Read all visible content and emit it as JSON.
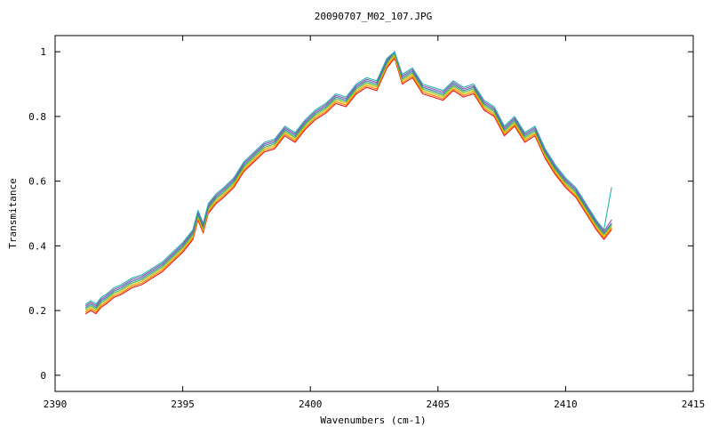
{
  "chart_data": {
    "type": "line",
    "title": "20090707_M02_107.JPG",
    "xlabel": "Wavenumbers (cm-1)",
    "ylabel": "Transmitance",
    "xlim": [
      2390,
      2415
    ],
    "ylim": [
      -0.05,
      1.05
    ],
    "xticks": [
      2390,
      2395,
      2400,
      2405,
      2410,
      2415
    ],
    "yticks": [
      0,
      0.2,
      0.4,
      0.6,
      0.8,
      1
    ],
    "xtick_labels": [
      "2390",
      "2395",
      "2400",
      "2405",
      "2410",
      "2415"
    ],
    "ytick_labels": [
      "0",
      "0.2",
      "0.4",
      "0.6",
      "0.8",
      "1"
    ],
    "grid": false,
    "legend": "none",
    "x": [
      2391.2,
      2391.4,
      2391.6,
      2391.8,
      2392.0,
      2392.3,
      2392.6,
      2393.0,
      2393.4,
      2393.8,
      2394.2,
      2394.6,
      2395.0,
      2395.4,
      2395.6,
      2395.8,
      2396.0,
      2396.3,
      2396.6,
      2397.0,
      2397.4,
      2397.8,
      2398.2,
      2398.6,
      2399.0,
      2399.4,
      2399.8,
      2400.2,
      2400.6,
      2401.0,
      2401.4,
      2401.8,
      2402.2,
      2402.6,
      2403.0,
      2403.3,
      2403.6,
      2404.0,
      2404.4,
      2404.8,
      2405.2,
      2405.6,
      2406.0,
      2406.4,
      2406.8,
      2407.2,
      2407.6,
      2408.0,
      2408.4,
      2408.8,
      2409.2,
      2409.6,
      2410.0,
      2410.4,
      2410.8,
      2411.2,
      2411.5,
      2411.8
    ],
    "series": [
      {
        "color": "#e41a1c",
        "values": [
          0.19,
          0.2,
          0.19,
          0.21,
          0.22,
          0.24,
          0.25,
          0.27,
          0.28,
          0.3,
          0.32,
          0.35,
          0.38,
          0.42,
          0.48,
          0.44,
          0.5,
          0.53,
          0.55,
          0.58,
          0.63,
          0.66,
          0.69,
          0.7,
          0.74,
          0.72,
          0.76,
          0.79,
          0.81,
          0.84,
          0.83,
          0.87,
          0.89,
          0.88,
          0.95,
          0.98,
          0.9,
          0.92,
          0.87,
          0.86,
          0.85,
          0.88,
          0.86,
          0.87,
          0.82,
          0.8,
          0.74,
          0.77,
          0.72,
          0.74,
          0.67,
          0.62,
          0.58,
          0.55,
          0.5,
          0.45,
          0.42,
          0.45
        ]
      },
      {
        "color": "#ff7f00",
        "values": [
          0.195,
          0.205,
          0.195,
          0.215,
          0.225,
          0.245,
          0.255,
          0.275,
          0.285,
          0.305,
          0.325,
          0.355,
          0.385,
          0.425,
          0.485,
          0.445,
          0.505,
          0.535,
          0.555,
          0.585,
          0.635,
          0.665,
          0.695,
          0.705,
          0.745,
          0.725,
          0.765,
          0.795,
          0.815,
          0.845,
          0.835,
          0.875,
          0.895,
          0.885,
          0.955,
          0.985,
          0.905,
          0.925,
          0.875,
          0.865,
          0.855,
          0.885,
          0.865,
          0.875,
          0.825,
          0.805,
          0.745,
          0.775,
          0.725,
          0.745,
          0.675,
          0.625,
          0.585,
          0.555,
          0.505,
          0.455,
          0.425,
          0.455
        ]
      },
      {
        "color": "#d4c400",
        "values": [
          0.2,
          0.21,
          0.2,
          0.22,
          0.23,
          0.25,
          0.26,
          0.28,
          0.29,
          0.31,
          0.33,
          0.36,
          0.39,
          0.43,
          0.49,
          0.45,
          0.51,
          0.54,
          0.56,
          0.59,
          0.64,
          0.67,
          0.7,
          0.71,
          0.75,
          0.73,
          0.77,
          0.8,
          0.82,
          0.85,
          0.84,
          0.88,
          0.9,
          0.89,
          0.96,
          0.99,
          0.91,
          0.93,
          0.88,
          0.87,
          0.86,
          0.89,
          0.87,
          0.88,
          0.83,
          0.81,
          0.75,
          0.78,
          0.73,
          0.75,
          0.68,
          0.63,
          0.59,
          0.56,
          0.51,
          0.46,
          0.43,
          0.46
        ]
      },
      {
        "color": "#4daf4a",
        "values": [
          0.205,
          0.215,
          0.205,
          0.225,
          0.235,
          0.255,
          0.265,
          0.285,
          0.295,
          0.315,
          0.335,
          0.365,
          0.395,
          0.435,
          0.495,
          0.455,
          0.515,
          0.545,
          0.565,
          0.595,
          0.645,
          0.675,
          0.705,
          0.715,
          0.755,
          0.735,
          0.775,
          0.805,
          0.825,
          0.855,
          0.845,
          0.885,
          0.905,
          0.895,
          0.965,
          0.995,
          0.915,
          0.935,
          0.885,
          0.875,
          0.865,
          0.895,
          0.875,
          0.885,
          0.835,
          0.815,
          0.755,
          0.785,
          0.735,
          0.755,
          0.685,
          0.635,
          0.595,
          0.565,
          0.515,
          0.465,
          0.435,
          0.465
        ]
      },
      {
        "color": "#377eb8",
        "values": [
          0.21,
          0.22,
          0.21,
          0.23,
          0.24,
          0.26,
          0.27,
          0.29,
          0.3,
          0.32,
          0.34,
          0.37,
          0.4,
          0.44,
          0.5,
          0.46,
          0.52,
          0.55,
          0.57,
          0.6,
          0.65,
          0.68,
          0.71,
          0.72,
          0.76,
          0.74,
          0.78,
          0.81,
          0.83,
          0.86,
          0.85,
          0.89,
          0.91,
          0.9,
          0.97,
          1.0,
          0.92,
          0.94,
          0.89,
          0.88,
          0.87,
          0.9,
          0.88,
          0.89,
          0.84,
          0.82,
          0.76,
          0.79,
          0.74,
          0.76,
          0.69,
          0.64,
          0.6,
          0.57,
          0.52,
          0.47,
          0.44,
          0.47
        ]
      },
      {
        "color": "#984ea3",
        "values": [
          0.215,
          0.225,
          0.215,
          0.235,
          0.245,
          0.265,
          0.275,
          0.295,
          0.305,
          0.325,
          0.345,
          0.375,
          0.405,
          0.445,
          0.505,
          0.465,
          0.525,
          0.555,
          0.575,
          0.605,
          0.655,
          0.685,
          0.715,
          0.725,
          0.765,
          0.745,
          0.785,
          0.815,
          0.835,
          0.865,
          0.855,
          0.895,
          0.915,
          0.905,
          0.975,
          1.0,
          0.925,
          0.945,
          0.895,
          0.885,
          0.875,
          0.905,
          0.885,
          0.895,
          0.845,
          0.825,
          0.765,
          0.795,
          0.745,
          0.765,
          0.695,
          0.645,
          0.605,
          0.575,
          0.525,
          0.475,
          0.445,
          0.48
        ]
      },
      {
        "color": "#1fb3b0",
        "values": [
          0.22,
          0.23,
          0.22,
          0.24,
          0.25,
          0.27,
          0.28,
          0.3,
          0.31,
          0.33,
          0.35,
          0.38,
          0.41,
          0.45,
          0.51,
          0.47,
          0.53,
          0.56,
          0.58,
          0.61,
          0.66,
          0.69,
          0.72,
          0.73,
          0.77,
          0.75,
          0.79,
          0.82,
          0.84,
          0.87,
          0.86,
          0.9,
          0.92,
          0.91,
          0.98,
          1.0,
          0.93,
          0.95,
          0.9,
          0.89,
          0.88,
          0.91,
          0.89,
          0.9,
          0.85,
          0.83,
          0.77,
          0.8,
          0.75,
          0.77,
          0.7,
          0.65,
          0.61,
          0.58,
          0.53,
          0.48,
          0.45,
          0.58
        ]
      }
    ]
  }
}
